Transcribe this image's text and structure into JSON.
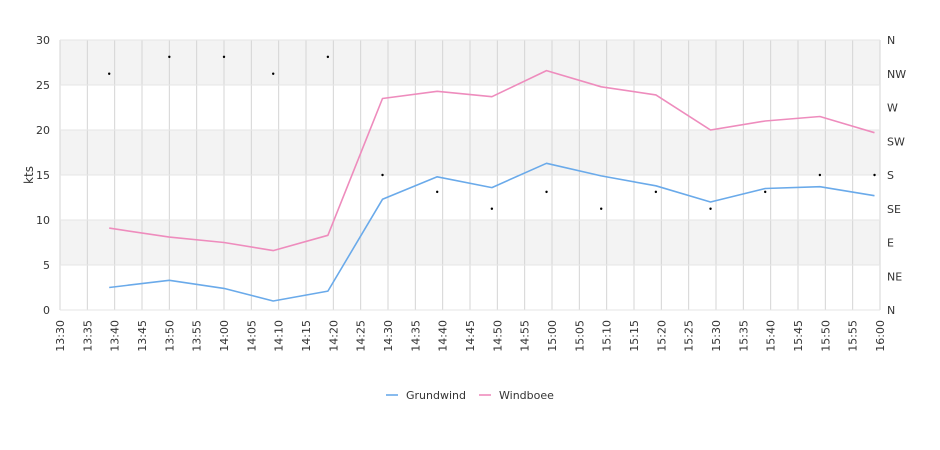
{
  "chart_data": {
    "type": "line",
    "ylabel": "kts",
    "ylim": [
      0,
      30
    ],
    "y_ticks": [
      "0",
      "5",
      "10",
      "15",
      "20",
      "25",
      "30"
    ],
    "y_right_ticks": [
      "N",
      "NE",
      "E",
      "SE",
      "S",
      "SW",
      "W",
      "NW",
      "N"
    ],
    "y_right_range": [
      0,
      360
    ],
    "x_ticks": [
      "13:30",
      "13:35",
      "13:40",
      "13:45",
      "13:50",
      "13:55",
      "14:00",
      "14:05",
      "14:10",
      "14:15",
      "14:20",
      "14:25",
      "14:30",
      "14:35",
      "14:40",
      "14:45",
      "14:50",
      "14:55",
      "15:00",
      "15:05",
      "15:10",
      "15:15",
      "15:20",
      "15:25",
      "15:30",
      "15:35",
      "15:40",
      "15:45",
      "15:50",
      "15:55",
      "16:00"
    ],
    "x_range": [
      "13:30",
      "16:00"
    ],
    "grid": true,
    "legend_position": "bottom-center",
    "series": [
      {
        "name": "Grundwind",
        "color": "#6aaaea",
        "x": [
          "13:39",
          "13:50",
          "14:00",
          "14:09",
          "14:19",
          "14:29",
          "14:39",
          "14:49",
          "14:59",
          "15:09",
          "15:19",
          "15:29",
          "15:39",
          "15:49",
          "15:59"
        ],
        "values": [
          2.5,
          3.3,
          2.4,
          1.0,
          2.1,
          12.3,
          14.8,
          13.6,
          16.3,
          14.9,
          13.8,
          12.0,
          13.5,
          13.7,
          12.7
        ]
      },
      {
        "name": "Windboee",
        "color": "#ee8cbd",
        "x": [
          "13:39",
          "13:50",
          "14:00",
          "14:09",
          "14:19",
          "14:29",
          "14:39",
          "14:49",
          "14:59",
          "15:09",
          "15:19",
          "15:29",
          "15:39",
          "15:49",
          "15:59"
        ],
        "values": [
          9.1,
          8.1,
          7.5,
          6.6,
          8.3,
          23.5,
          24.3,
          23.7,
          26.6,
          24.8,
          23.9,
          20.0,
          21.0,
          21.5,
          19.7
        ]
      }
    ],
    "direction_points": {
      "x": [
        "13:39",
        "13:50",
        "14:00",
        "14:09",
        "14:19",
        "14:29",
        "14:39",
        "14:49",
        "14:59",
        "15:09",
        "15:19",
        "15:29",
        "15:39",
        "15:49",
        "15:59"
      ],
      "values": [
        315,
        337.5,
        337.5,
        315,
        337.5,
        180,
        157.5,
        135,
        157.5,
        135,
        157.5,
        135,
        157.5,
        180,
        180
      ]
    }
  }
}
